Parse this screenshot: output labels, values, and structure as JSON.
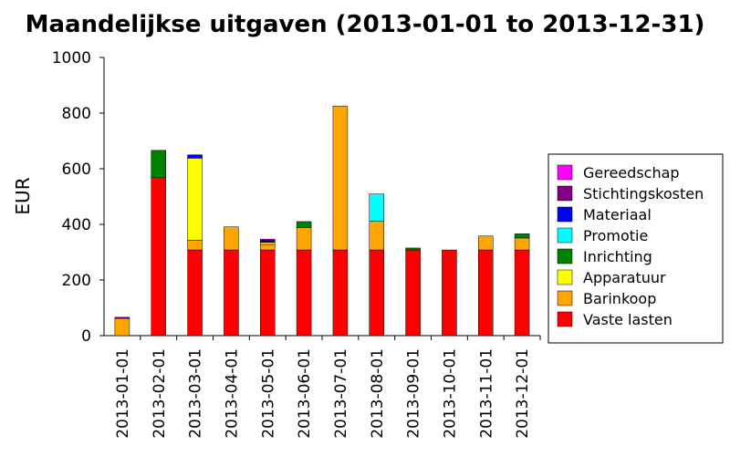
{
  "chart_data": {
    "type": "bar",
    "stacked": true,
    "title": "Maandelijkse uitgaven (2013-01-01 to 2013-12-31)",
    "xlabel": "",
    "ylabel": "EUR",
    "ylim": [
      0,
      1000
    ],
    "yticks": [
      0,
      200,
      400,
      600,
      800,
      1000
    ],
    "grid": false,
    "legend_position": "right",
    "categories": [
      "2013-01-01",
      "2013-02-01",
      "2013-03-01",
      "2013-04-01",
      "2013-05-01",
      "2013-06-01",
      "2013-07-01",
      "2013-08-01",
      "2013-09-01",
      "2013-10-01",
      "2013-11-01",
      "2013-12-01"
    ],
    "series": [
      {
        "name": "Vaste lasten",
        "color": "#ff0000",
        "values": [
          0,
          568,
          308,
          308,
          308,
          308,
          308,
          308,
          308,
          308,
          308,
          308
        ]
      },
      {
        "name": "Barinkoop",
        "color": "#ffa500",
        "values": [
          62,
          0,
          35,
          83,
          20,
          80,
          517,
          103,
          0,
          0,
          50,
          43
        ]
      },
      {
        "name": "Apparatuur",
        "color": "#ffff00",
        "values": [
          0,
          0,
          295,
          0,
          7,
          0,
          0,
          0,
          0,
          0,
          0,
          0
        ]
      },
      {
        "name": "Inrichting",
        "color": "#008000",
        "values": [
          0,
          98,
          0,
          0,
          0,
          22,
          0,
          0,
          7,
          0,
          0,
          15
        ]
      },
      {
        "name": "Promotie",
        "color": "#00ffff",
        "values": [
          0,
          0,
          0,
          0,
          0,
          0,
          0,
          98,
          0,
          0,
          0,
          0
        ]
      },
      {
        "name": "Materiaal",
        "color": "#0000ff",
        "values": [
          0,
          0,
          12,
          0,
          5,
          0,
          0,
          0,
          0,
          0,
          0,
          0
        ]
      },
      {
        "name": "Stichtingskosten",
        "color": "#800080",
        "values": [
          4,
          0,
          0,
          0,
          3,
          0,
          0,
          0,
          0,
          0,
          0,
          0
        ]
      },
      {
        "name": "Gereedschap",
        "color": "#ff00ff",
        "values": [
          0,
          0,
          0,
          0,
          4,
          0,
          0,
          0,
          0,
          0,
          0,
          0
        ]
      }
    ]
  }
}
